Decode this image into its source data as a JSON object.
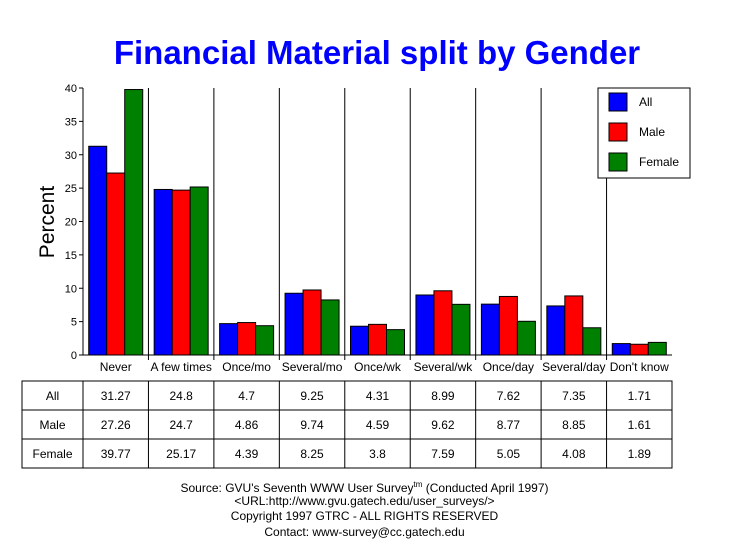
{
  "chart_data": {
    "type": "bar",
    "title": "Financial Material split by Gender",
    "xlabel": "",
    "ylabel": "Percent",
    "ylim": [
      0,
      40
    ],
    "yticks": [
      "0",
      "5",
      "10",
      "15",
      "20",
      "25",
      "30",
      "35",
      "40"
    ],
    "categories": [
      "Never",
      "A few times",
      "Once/mo",
      "Several/mo",
      "Once/wk",
      "Several/wk",
      "Once/day",
      "Several/day",
      "Don't know"
    ],
    "series": [
      {
        "name": "All",
        "color": "#0000ff",
        "values": [
          31.27,
          24.8,
          4.7,
          9.25,
          4.31,
          8.99,
          7.62,
          7.35,
          1.71
        ],
        "labels": [
          "31.27",
          "24.8",
          "4.7",
          "9.25",
          "4.31",
          "8.99",
          "7.62",
          "7.35",
          "1.71"
        ]
      },
      {
        "name": "Male",
        "color": "#ff0000",
        "values": [
          27.26,
          24.7,
          4.86,
          9.74,
          4.59,
          9.62,
          8.77,
          8.85,
          1.61
        ],
        "labels": [
          "27.26",
          "24.7",
          "4.86",
          "9.74",
          "4.59",
          "9.62",
          "8.77",
          "8.85",
          "1.61"
        ]
      },
      {
        "name": "Female",
        "color": "#008000",
        "values": [
          39.77,
          25.17,
          4.39,
          8.25,
          3.8,
          7.59,
          5.05,
          4.08,
          1.89
        ],
        "labels": [
          "39.77",
          "25.17",
          "4.39",
          "8.25",
          "3.8",
          "7.59",
          "5.05",
          "4.08",
          "1.89"
        ]
      }
    ],
    "legend_position": "top-right",
    "grid": false
  },
  "footer": {
    "source_prefix": "Source: GVU's Seventh WWW User Survey",
    "tm": "tm",
    "source_suffix": " (Conducted April 1997)",
    "url": "<URL:http://www.gvu.gatech.edu/user_surveys/>",
    "copyright": "Copyright 1997 GTRC - ALL RIGHTS RESERVED",
    "contact": "Contact: www-survey@cc.gatech.edu"
  }
}
